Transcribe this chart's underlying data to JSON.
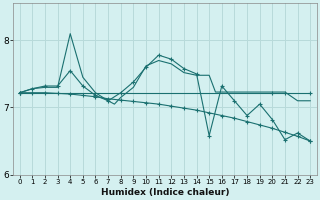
{
  "xlabel": "Humidex (Indice chaleur)",
  "bg_color": "#d4f0f0",
  "grid_color": "#b8dada",
  "line_color": "#1a7070",
  "xlim": [
    -0.5,
    23.5
  ],
  "ylim": [
    6.0,
    8.55
  ],
  "yticks": [
    6,
    7,
    8
  ],
  "xticks": [
    0,
    1,
    2,
    3,
    4,
    5,
    6,
    7,
    8,
    9,
    10,
    11,
    12,
    13,
    14,
    15,
    16,
    17,
    18,
    19,
    20,
    21,
    22,
    23
  ],
  "series": [
    {
      "x": [
        0,
        1,
        2,
        3,
        4,
        5,
        6,
        7,
        8,
        9,
        10,
        11,
        12,
        13,
        14,
        15,
        16,
        17,
        18,
        19,
        20,
        21,
        22,
        23
      ],
      "y": [
        7.22,
        7.22,
        7.22,
        7.21,
        7.2,
        7.18,
        7.16,
        7.13,
        7.11,
        7.09,
        7.07,
        7.05,
        7.02,
        6.99,
        6.96,
        6.92,
        6.88,
        6.84,
        6.79,
        6.74,
        6.69,
        6.63,
        6.57,
        6.5
      ],
      "marker": true
    },
    {
      "x": [
        0,
        1,
        2,
        3,
        4,
        5,
        6,
        7,
        7.5,
        8,
        9,
        10,
        11,
        12,
        13,
        14,
        15,
        15.5,
        16,
        17,
        17.5,
        18,
        19,
        20,
        20.5,
        21,
        22,
        23
      ],
      "y": [
        7.22,
        7.28,
        7.3,
        7.3,
        8.1,
        7.45,
        7.22,
        7.1,
        7.05,
        7.15,
        7.3,
        7.62,
        7.7,
        7.65,
        7.52,
        7.48,
        7.48,
        7.23,
        7.23,
        7.23,
        7.23,
        7.23,
        7.23,
        7.23,
        7.23,
        7.23,
        7.1,
        7.1
      ],
      "marker": false
    },
    {
      "x": [
        0,
        1,
        2,
        3,
        4,
        5,
        6,
        7,
        8,
        9,
        10,
        11,
        12,
        13,
        14,
        15,
        16,
        17,
        18,
        19,
        20,
        21,
        22,
        23
      ],
      "y": [
        7.22,
        7.28,
        7.32,
        7.32,
        7.55,
        7.32,
        7.18,
        7.1,
        7.22,
        7.38,
        7.6,
        7.78,
        7.72,
        7.58,
        7.5,
        6.58,
        7.32,
        7.1,
        6.88,
        7.05,
        6.82,
        6.52,
        6.62,
        6.5
      ],
      "marker": true
    },
    {
      "x": [
        0,
        20,
        21,
        23
      ],
      "y": [
        7.22,
        7.22,
        7.22,
        7.22
      ],
      "marker": true
    }
  ]
}
